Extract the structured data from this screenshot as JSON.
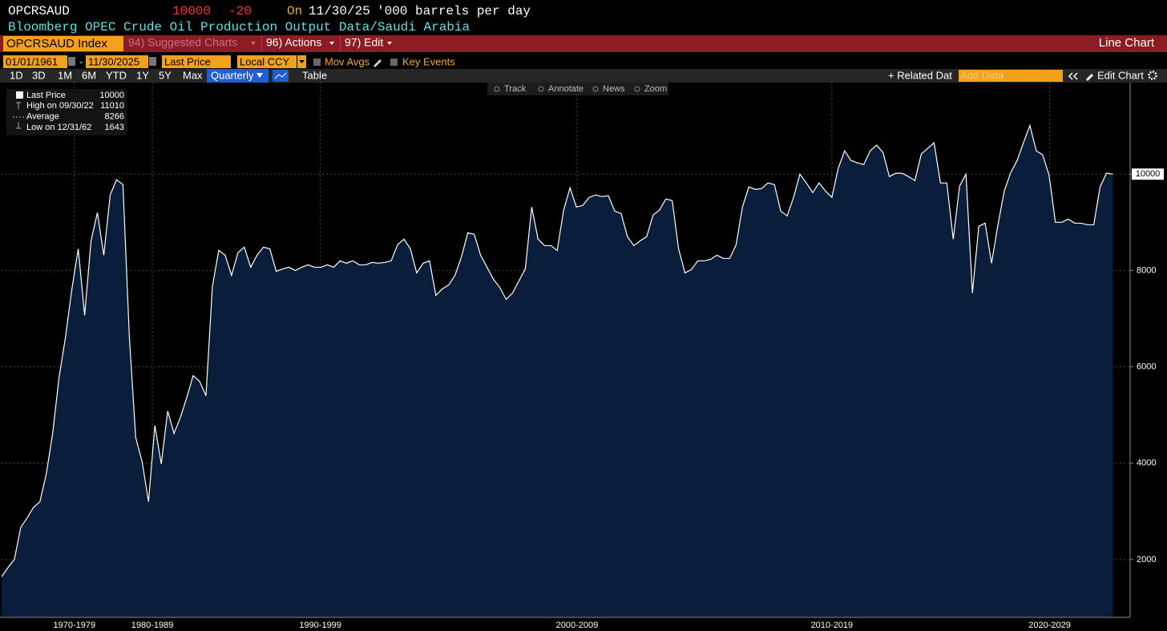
{
  "header": {
    "ticker": "OPCRSAUD",
    "last": 10000,
    "change": -20,
    "date_prefix": "On",
    "date": "11/30/25",
    "units": "'000 barrels per day",
    "description": "Bloomberg OPEC Crude Oil Production Output Data/Saudi Arabia"
  },
  "toolbar": {
    "security": "OPCRSAUD Index",
    "menus": [
      "94) Suggested Charts",
      "96) Actions",
      "97) Edit"
    ],
    "chart_kind": "Line Chart",
    "start_date": "01/01/1961",
    "date_separator": "-",
    "end_date": "11/30/2025",
    "field": "Last Price",
    "currency": "Local CCY",
    "options": [
      "Mov Avgs",
      "Key Events"
    ],
    "periods": [
      "1D",
      "3D",
      "1M",
      "6M",
      "YTD",
      "1Y",
      "5Y",
      "Max"
    ],
    "frequency": "Quarterly",
    "table": "Table",
    "related": "+ Related Dat",
    "add_data": "Add Data",
    "edit_chart": "Edit Chart",
    "chart_tools": [
      "Track",
      "Annotate",
      "News",
      "Zoom"
    ]
  },
  "chart_data": {
    "type": "area",
    "series": [
      {
        "name": "Last Price",
        "color": "#ffffff",
        "fill": "#0a1d3a",
        "values": [
          1643,
          1833,
          2000,
          2667,
          2867,
          3083,
          3200,
          3783,
          4617,
          5783,
          6617,
          7617,
          8450,
          7067,
          8617,
          9200,
          8317,
          9567,
          9883,
          9783,
          6617,
          4533,
          4033,
          3200,
          4783,
          3983,
          5083,
          4617,
          4950,
          5367,
          5817,
          5700,
          5400,
          7667,
          8417,
          8317,
          7900,
          8367,
          8483,
          8067,
          8317,
          8483,
          8450,
          7983,
          8033,
          8067,
          8000,
          8067,
          8117,
          8067,
          8067,
          8117,
          8067,
          8200,
          8150,
          8200,
          8117,
          8117,
          8167,
          8150,
          8167,
          8200,
          8533,
          8650,
          8450,
          7950,
          8150,
          8200,
          7483,
          7617,
          7700,
          7900,
          8283,
          8783,
          8750,
          8317,
          8067,
          7817,
          7650,
          7400,
          7533,
          7783,
          8033,
          9317,
          8650,
          8517,
          8517,
          8417,
          9250,
          9717,
          9317,
          9350,
          9517,
          9567,
          9533,
          9550,
          9233,
          9183,
          8700,
          8517,
          8617,
          8700,
          9150,
          9250,
          9483,
          9450,
          8450,
          7950,
          8017,
          8200,
          8200,
          8233,
          8317,
          8250,
          8250,
          8533,
          9317,
          9733,
          9683,
          9700,
          9817,
          9783,
          9233,
          9133,
          9517,
          10000,
          9817,
          9617,
          9817,
          9650,
          9517,
          10117,
          10483,
          10283,
          10233,
          10200,
          10483,
          10600,
          10450,
          9950,
          10017,
          10017,
          9950,
          9867,
          10417,
          10533,
          10650,
          9817,
          9817,
          8650,
          9750,
          10000,
          7533,
          8917,
          8983,
          8150,
          8950,
          9650,
          10033,
          10283,
          10650,
          11010,
          10483,
          10400,
          9983,
          9000,
          9000,
          9067,
          8983,
          8983,
          8950,
          8950,
          9733,
          10020,
          10000
        ]
      }
    ],
    "stats": [
      {
        "label": "High on 09/30/22",
        "value": 11010
      },
      {
        "label": "Average",
        "value": 8266
      },
      {
        "label": "Low on 12/31/62",
        "value": 1643
      }
    ],
    "xlim": [
      0,
      176.7
    ],
    "xticks": [
      {
        "value": 11.4,
        "label": "1970-1979"
      },
      {
        "value": 23.6,
        "label": "1980-1989"
      },
      {
        "value": 49.9,
        "label": "1990-1999"
      },
      {
        "value": 90.1,
        "label": "2000-2009"
      },
      {
        "value": 130,
        "label": "2010-2019"
      },
      {
        "value": 164.1,
        "label": "2020-2029"
      }
    ],
    "ylim": [
      800,
      11900
    ],
    "yticks": [
      2000,
      4000,
      6000,
      8000,
      10000
    ],
    "grid": true
  }
}
